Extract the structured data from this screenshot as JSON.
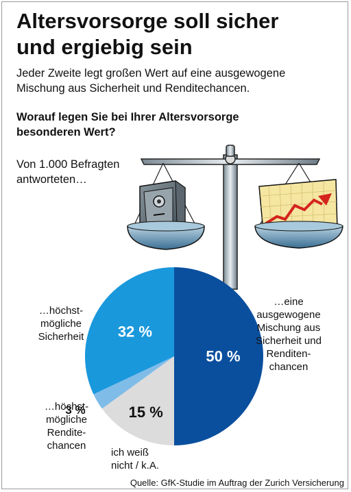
{
  "title_line1": "Altersvorsorge soll sicher",
  "title_line2": "und ergiebig sein",
  "subtitle_line1": "Jeder Zweite legt großen Wert auf eine ausgewogene",
  "subtitle_line2": "Mischung aus Sicherheit und Renditechancen.",
  "question_line1": "Worauf legen Sie bei Ihrer Altersvorsorge",
  "question_line2": "besonderen Wert?",
  "sample_line1": "Von 1.000 Befragten",
  "sample_line2": "antworteten…",
  "source": "Quelle: GfK-Studie im Auftrag der Zurich Versicherung",
  "chart_data": {
    "type": "pie",
    "slices": [
      {
        "value": 50,
        "value_label": "50 %",
        "label_lines": [
          "…eine",
          "ausgewogene",
          "Mischung aus",
          "Sicherheit und",
          "Renditen-",
          "chancen"
        ],
        "color": "#0a4f9e"
      },
      {
        "value": 15,
        "value_label": "15 %",
        "label_lines": [
          "ich weiß",
          "nicht / k.A."
        ],
        "color": "#dcdcdc"
      },
      {
        "value": 3,
        "value_label": "3 %",
        "label_lines": [
          "…höchst-",
          "mögliche",
          "Rendite-",
          "chancen"
        ],
        "color": "#7fbce8"
      },
      {
        "value": 32,
        "value_label": "32 %",
        "label_lines": [
          "…höchst-",
          "mögliche",
          "Sicherheit"
        ],
        "color": "#1a98dc"
      }
    ]
  }
}
